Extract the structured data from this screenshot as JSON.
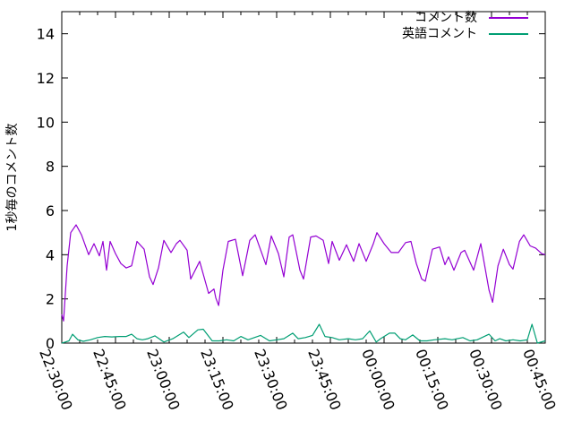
{
  "chart_data": {
    "type": "line",
    "title": "",
    "xlabel": "",
    "ylabel": "1秒毎のコメント数",
    "grid": false,
    "legend_position": "top-right-inside",
    "axis_color": "#000000",
    "x_unit": "minutes since 22:30:00",
    "xlim": [
      0,
      135
    ],
    "ylim": [
      0,
      15
    ],
    "y_ticks": [
      0,
      2,
      4,
      6,
      8,
      10,
      12,
      14
    ],
    "x_major_step": 15,
    "x_minor_step": 5,
    "x_label_rotation": 68,
    "x_ticks": [
      {
        "t": 0,
        "label": "22:30:00"
      },
      {
        "t": 15,
        "label": "22:45:00"
      },
      {
        "t": 30,
        "label": "23:00:00"
      },
      {
        "t": 45,
        "label": "23:15:00"
      },
      {
        "t": 60,
        "label": "23:30:00"
      },
      {
        "t": 75,
        "label": "23:45:00"
      },
      {
        "t": 90,
        "label": "00:00:00"
      },
      {
        "t": 105,
        "label": "00:15:00"
      },
      {
        "t": 120,
        "label": "00:30:00"
      },
      {
        "t": 135,
        "label": "00:45:00"
      }
    ],
    "series": [
      {
        "name": "コメント数",
        "color": "#9400d3",
        "points": [
          [
            0,
            1.3
          ],
          [
            0.5,
            1.0
          ],
          [
            1.5,
            3.5
          ],
          [
            2.5,
            5.0
          ],
          [
            4,
            5.35
          ],
          [
            5.5,
            4.9
          ],
          [
            7.5,
            4.0
          ],
          [
            9,
            4.5
          ],
          [
            10.5,
            3.95
          ],
          [
            11.5,
            4.6
          ],
          [
            12.5,
            3.3
          ],
          [
            13.5,
            4.6
          ],
          [
            15,
            4.05
          ],
          [
            16.5,
            3.6
          ],
          [
            18,
            3.4
          ],
          [
            19.5,
            3.5
          ],
          [
            21,
            4.6
          ],
          [
            23,
            4.25
          ],
          [
            24.5,
            3.0
          ],
          [
            25.5,
            2.65
          ],
          [
            27,
            3.4
          ],
          [
            28.5,
            4.65
          ],
          [
            30.5,
            4.1
          ],
          [
            32,
            4.5
          ],
          [
            33,
            4.65
          ],
          [
            35,
            4.2
          ],
          [
            36,
            2.9
          ],
          [
            38.5,
            3.7
          ],
          [
            41,
            2.25
          ],
          [
            42.5,
            2.45
          ],
          [
            43,
            2.05
          ],
          [
            43.8,
            1.7
          ],
          [
            45,
            3.3
          ],
          [
            46.5,
            4.6
          ],
          [
            48.5,
            4.7
          ],
          [
            50.5,
            3.05
          ],
          [
            52.5,
            4.65
          ],
          [
            54,
            4.9
          ],
          [
            57,
            3.55
          ],
          [
            58.5,
            4.85
          ],
          [
            60.5,
            4.05
          ],
          [
            62,
            3.0
          ],
          [
            63.5,
            4.8
          ],
          [
            64.5,
            4.9
          ],
          [
            66.5,
            3.3
          ],
          [
            67.5,
            2.9
          ],
          [
            69.5,
            4.8
          ],
          [
            71,
            4.85
          ],
          [
            73,
            4.65
          ],
          [
            74.5,
            3.6
          ],
          [
            75.5,
            4.6
          ],
          [
            77.5,
            3.75
          ],
          [
            79.5,
            4.45
          ],
          [
            81.5,
            3.7
          ],
          [
            83,
            4.5
          ],
          [
            85,
            3.7
          ],
          [
            87,
            4.5
          ],
          [
            88,
            5.0
          ],
          [
            90,
            4.5
          ],
          [
            92,
            4.1
          ],
          [
            94,
            4.1
          ],
          [
            96,
            4.55
          ],
          [
            97.5,
            4.6
          ],
          [
            99,
            3.6
          ],
          [
            100.5,
            2.9
          ],
          [
            101.5,
            2.8
          ],
          [
            103.5,
            4.25
          ],
          [
            105.5,
            4.35
          ],
          [
            107,
            3.55
          ],
          [
            108,
            3.9
          ],
          [
            109.5,
            3.3
          ],
          [
            111.5,
            4.1
          ],
          [
            112.5,
            4.2
          ],
          [
            115,
            3.3
          ],
          [
            117,
            4.5
          ],
          [
            119.3,
            2.4
          ],
          [
            120.3,
            1.85
          ],
          [
            121.8,
            3.5
          ],
          [
            123.3,
            4.25
          ],
          [
            125,
            3.55
          ],
          [
            126,
            3.35
          ],
          [
            127.8,
            4.6
          ],
          [
            129,
            4.9
          ],
          [
            130.8,
            4.4
          ],
          [
            132.3,
            4.3
          ],
          [
            134,
            4.05
          ],
          [
            135,
            4.0
          ]
        ]
      },
      {
        "name": "英語コメント",
        "color": "#009e73",
        "points": [
          [
            0,
            0.0
          ],
          [
            1,
            0.05
          ],
          [
            2,
            0.1
          ],
          [
            3,
            0.4
          ],
          [
            4.5,
            0.15
          ],
          [
            6,
            0.08
          ],
          [
            8,
            0.15
          ],
          [
            10,
            0.25
          ],
          [
            12,
            0.3
          ],
          [
            14,
            0.28
          ],
          [
            16,
            0.3
          ],
          [
            18,
            0.3
          ],
          [
            19.5,
            0.4
          ],
          [
            21,
            0.2
          ],
          [
            22.5,
            0.15
          ],
          [
            24,
            0.2
          ],
          [
            26,
            0.33
          ],
          [
            28.5,
            0.05
          ],
          [
            31,
            0.2
          ],
          [
            34,
            0.5
          ],
          [
            35.5,
            0.25
          ],
          [
            38,
            0.6
          ],
          [
            39.5,
            0.63
          ],
          [
            42,
            0.1
          ],
          [
            44,
            0.1
          ],
          [
            46,
            0.15
          ],
          [
            48,
            0.1
          ],
          [
            50,
            0.3
          ],
          [
            52,
            0.15
          ],
          [
            55.5,
            0.35
          ],
          [
            58,
            0.1
          ],
          [
            60,
            0.15
          ],
          [
            62,
            0.2
          ],
          [
            64.5,
            0.45
          ],
          [
            66,
            0.2
          ],
          [
            68,
            0.25
          ],
          [
            70,
            0.35
          ],
          [
            71.9,
            0.85
          ],
          [
            73.5,
            0.3
          ],
          [
            75.5,
            0.25
          ],
          [
            77.5,
            0.15
          ],
          [
            80,
            0.2
          ],
          [
            82,
            0.15
          ],
          [
            84,
            0.2
          ],
          [
            86,
            0.55
          ],
          [
            87.8,
            0.05
          ],
          [
            89,
            0.2
          ],
          [
            91.5,
            0.45
          ],
          [
            93,
            0.45
          ],
          [
            94.5,
            0.2
          ],
          [
            96,
            0.15
          ],
          [
            98,
            0.37
          ],
          [
            100,
            0.1
          ],
          [
            102,
            0.1
          ],
          [
            104,
            0.15
          ],
          [
            107,
            0.2
          ],
          [
            109,
            0.15
          ],
          [
            112,
            0.25
          ],
          [
            114,
            0.1
          ],
          [
            116,
            0.15
          ],
          [
            119.3,
            0.4
          ],
          [
            121,
            0.1
          ],
          [
            122.3,
            0.2
          ],
          [
            124,
            0.1
          ],
          [
            126,
            0.15
          ],
          [
            128,
            0.1
          ],
          [
            130,
            0.15
          ],
          [
            131.3,
            0.85
          ],
          [
            132.8,
            0.0
          ],
          [
            135,
            0.1
          ]
        ]
      }
    ]
  }
}
